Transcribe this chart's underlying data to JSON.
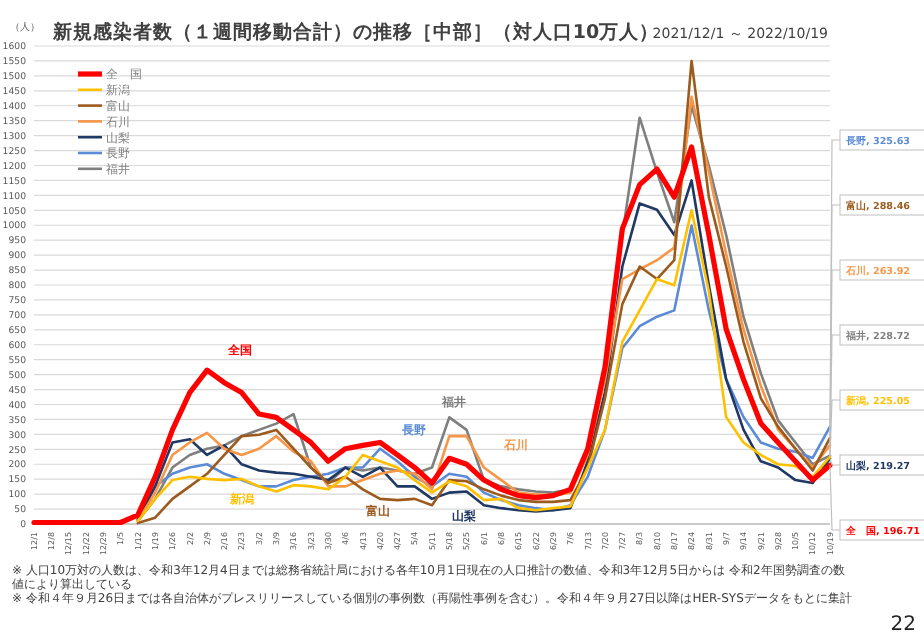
{
  "chart_data": {
    "type": "line",
    "title": "新規感染者数（１週間移動合計）の推移［中部］（対人口10万人）",
    "subtitle": "2021/12/1 ～ 2022/10/19",
    "ylabel": "（人）",
    "x": [
      "2021-12-01",
      "2021-12-08",
      "2021-12-15",
      "2021-12-22",
      "2021-12-29",
      "2022-01-05",
      "2022-01-12",
      "2022-01-19",
      "2022-01-26",
      "2022-02-02",
      "2022-02-09",
      "2022-02-16",
      "2022-02-23",
      "2022-03-02",
      "2022-03-09",
      "2022-03-16",
      "2022-03-23",
      "2022-03-30",
      "2022-04-06",
      "2022-04-13",
      "2022-04-20",
      "2022-04-27",
      "2022-05-04",
      "2022-05-11",
      "2022-05-18",
      "2022-05-25",
      "2022-06-01",
      "2022-06-08",
      "2022-06-15",
      "2022-06-22",
      "2022-06-29",
      "2022-07-06",
      "2022-07-13",
      "2022-07-20",
      "2022-07-27",
      "2022-08-03",
      "2022-08-10",
      "2022-08-17",
      "2022-08-24",
      "2022-08-31",
      "2022-09-07",
      "2022-09-14",
      "2022-09-21",
      "2022-09-28",
      "2022-10-05",
      "2022-10-12",
      "2022-10-19"
    ],
    "series": [
      {
        "name": "全　国",
        "color": "#ff0000",
        "values": [
          5,
          5,
          5,
          5,
          5,
          5,
          30,
          158,
          315,
          440,
          515,
          473,
          440,
          368,
          357,
          315,
          273,
          210,
          252,
          263,
          273,
          231,
          189,
          137,
          220,
          200,
          147,
          116,
          95,
          88,
          95,
          116,
          252,
          526,
          988,
          1136,
          1188,
          1094,
          1262,
          967,
          652,
          484,
          337,
          273,
          210,
          147,
          196.71
        ],
        "value_labels": [
          null,
          null,
          null,
          null,
          null,
          null,
          null,
          null,
          null,
          null,
          null,
          null,
          null,
          null,
          null,
          null,
          null,
          null,
          null,
          null,
          null,
          null,
          null,
          null,
          null,
          null,
          null,
          null,
          null,
          null,
          null,
          null,
          null,
          null,
          null,
          null,
          null,
          null,
          null,
          null,
          null,
          null,
          null,
          null,
          null,
          null,
          "全　国, 196.71"
        ]
      },
      {
        "name": "新潟",
        "color": "#ffc000",
        "values": [
          null,
          null,
          null,
          null,
          null,
          null,
          10,
          84,
          147,
          158,
          151,
          147,
          151,
          126,
          109,
          130,
          126,
          116,
          158,
          231,
          210,
          189,
          147,
          105,
          143,
          126,
          80,
          84,
          53,
          46,
          53,
          59,
          189,
          316,
          610,
          715,
          820,
          799,
          1050,
          778,
          358,
          273,
          231,
          200,
          194,
          158,
          225.05
        ],
        "value_labels": [
          null,
          null,
          null,
          null,
          null,
          null,
          null,
          null,
          null,
          null,
          null,
          null,
          null,
          null,
          null,
          null,
          null,
          null,
          null,
          null,
          null,
          null,
          null,
          null,
          null,
          null,
          null,
          null,
          null,
          null,
          null,
          null,
          null,
          null,
          null,
          null,
          null,
          null,
          null,
          null,
          null,
          null,
          null,
          null,
          null,
          null,
          "新潟, 225.05"
        ]
      },
      {
        "name": "富山",
        "color": "#9c5a1e",
        "values": [
          null,
          null,
          null,
          null,
          null,
          null,
          3,
          21,
          84,
          126,
          168,
          231,
          294,
          299,
          315,
          252,
          189,
          137,
          158,
          116,
          84,
          80,
          84,
          63,
          147,
          143,
          116,
          95,
          80,
          74,
          74,
          80,
          189,
          421,
          736,
          862,
          820,
          883,
          1550,
          1094,
          862,
          610,
          421,
          326,
          252,
          179,
          288.46
        ],
        "value_labels": [
          null,
          null,
          null,
          null,
          null,
          null,
          null,
          null,
          null,
          null,
          null,
          null,
          null,
          null,
          null,
          null,
          null,
          null,
          null,
          null,
          null,
          null,
          null,
          null,
          null,
          null,
          null,
          null,
          null,
          null,
          null,
          null,
          null,
          null,
          null,
          null,
          null,
          null,
          null,
          null,
          null,
          null,
          null,
          null,
          null,
          null,
          "富山, 288.46"
        ]
      },
      {
        "name": "石川",
        "color": "#f79646",
        "values": [
          null,
          null,
          null,
          null,
          null,
          null,
          10,
          105,
          231,
          273,
          305,
          252,
          231,
          252,
          294,
          242,
          210,
          126,
          126,
          147,
          168,
          179,
          168,
          116,
          294,
          294,
          189,
          147,
          105,
          99,
          95,
          105,
          231,
          484,
          820,
          852,
          883,
          925,
          1430,
          1178,
          904,
          652,
          463,
          316,
          252,
          189,
          263.92
        ],
        "value_labels": [
          null,
          null,
          null,
          null,
          null,
          null,
          null,
          null,
          null,
          null,
          null,
          null,
          null,
          null,
          null,
          null,
          null,
          null,
          null,
          null,
          null,
          null,
          null,
          null,
          null,
          null,
          null,
          null,
          null,
          null,
          null,
          null,
          null,
          null,
          null,
          null,
          null,
          null,
          null,
          null,
          null,
          null,
          null,
          null,
          null,
          null,
          "石川, 263.92"
        ]
      },
      {
        "name": "山梨",
        "color": "#1f3864",
        "values": [
          null,
          null,
          null,
          null,
          null,
          null,
          15,
          126,
          273,
          284,
          231,
          263,
          200,
          179,
          172,
          168,
          158,
          147,
          189,
          158,
          189,
          126,
          126,
          84,
          105,
          109,
          63,
          53,
          46,
          42,
          46,
          53,
          210,
          442,
          862,
          1073,
          1052,
          967,
          1150,
          799,
          484,
          316,
          210,
          189,
          147,
          137,
          219.27
        ],
        "value_labels": [
          null,
          null,
          null,
          null,
          null,
          null,
          null,
          null,
          null,
          null,
          null,
          null,
          null,
          null,
          null,
          null,
          null,
          null,
          null,
          null,
          null,
          null,
          null,
          null,
          null,
          null,
          null,
          null,
          null,
          null,
          null,
          null,
          null,
          null,
          null,
          null,
          null,
          null,
          null,
          null,
          null,
          null,
          null,
          null,
          null,
          null,
          "山梨, 219.27"
        ]
      },
      {
        "name": "長野",
        "color": "#5b8bd6",
        "values": [
          null,
          null,
          null,
          null,
          null,
          null,
          15,
          126,
          168,
          189,
          200,
          168,
          147,
          126,
          126,
          147,
          158,
          168,
          189,
          189,
          252,
          210,
          158,
          126,
          168,
          158,
          105,
          80,
          63,
          53,
          46,
          63,
          158,
          316,
          589,
          662,
          694,
          715,
          999,
          715,
          484,
          358,
          273,
          252,
          242,
          221,
          325.63
        ],
        "value_labels": [
          null,
          null,
          null,
          null,
          null,
          null,
          null,
          null,
          null,
          null,
          null,
          null,
          null,
          null,
          null,
          null,
          null,
          null,
          null,
          null,
          null,
          null,
          null,
          null,
          null,
          null,
          null,
          null,
          null,
          null,
          null,
          null,
          null,
          null,
          null,
          null,
          null,
          null,
          null,
          null,
          null,
          null,
          null,
          null,
          null,
          null,
          "長野, 325.63"
        ]
      },
      {
        "name": "福井",
        "color": "#7f7f7f",
        "values": [
          null,
          null,
          null,
          null,
          null,
          null,
          10,
          84,
          189,
          231,
          252,
          263,
          294,
          315,
          336,
          368,
          189,
          137,
          189,
          179,
          189,
          179,
          168,
          189,
          357,
          315,
          147,
          126,
          116,
          109,
          105,
          116,
          231,
          505,
          967,
          1360,
          1178,
          1010,
          1400,
          1199,
          967,
          694,
          505,
          347,
          273,
          200,
          228.72
        ],
        "value_labels": [
          null,
          null,
          null,
          null,
          null,
          null,
          null,
          null,
          null,
          null,
          null,
          null,
          null,
          null,
          null,
          null,
          null,
          null,
          null,
          null,
          null,
          null,
          null,
          null,
          null,
          null,
          null,
          null,
          null,
          null,
          null,
          null,
          null,
          null,
          null,
          null,
          null,
          null,
          null,
          null,
          null,
          null,
          null,
          null,
          null,
          null,
          "福井, 228.72"
        ]
      }
    ],
    "xlim": [
      "2021-12-01",
      "2022-10-19"
    ],
    "xticks": [
      {
        "value": "2021-12-01",
        "label": "12/1"
      },
      {
        "value": "2021-12-08",
        "label": "12/8"
      },
      {
        "value": "2021-12-15",
        "label": "12/15"
      },
      {
        "value": "2021-12-22",
        "label": "12/22"
      },
      {
        "value": "2021-12-29",
        "label": "12/29"
      },
      {
        "value": "2022-01-05",
        "label": "1/5"
      },
      {
        "value": "2022-01-12",
        "label": "1/12"
      },
      {
        "value": "2022-01-19",
        "label": "1/19"
      },
      {
        "value": "2022-01-26",
        "label": "1/26"
      },
      {
        "value": "2022-02-02",
        "label": "2/2"
      },
      {
        "value": "2022-02-09",
        "label": "2/9"
      },
      {
        "value": "2022-02-16",
        "label": "2/16"
      },
      {
        "value": "2022-02-23",
        "label": "2/23"
      },
      {
        "value": "2022-03-02",
        "label": "3/2"
      },
      {
        "value": "2022-03-09",
        "label": "3/9"
      },
      {
        "value": "2022-03-16",
        "label": "3/16"
      },
      {
        "value": "2022-03-23",
        "label": "3/23"
      },
      {
        "value": "2022-03-30",
        "label": "3/30"
      },
      {
        "value": "2022-04-06",
        "label": "4/6"
      },
      {
        "value": "2022-04-13",
        "label": "4/13"
      },
      {
        "value": "2022-04-20",
        "label": "4/20"
      },
      {
        "value": "2022-04-27",
        "label": "4/27"
      },
      {
        "value": "2022-05-04",
        "label": "5/4"
      },
      {
        "value": "2022-05-11",
        "label": "5/11"
      },
      {
        "value": "2022-05-18",
        "label": "5/18"
      },
      {
        "value": "2022-05-25",
        "label": "5/25"
      },
      {
        "value": "2022-06-01",
        "label": "6/1"
      },
      {
        "value": "2022-06-08",
        "label": "6/8"
      },
      {
        "value": "2022-06-15",
        "label": "6/15"
      },
      {
        "value": "2022-06-22",
        "label": "6/22"
      },
      {
        "value": "2022-06-29",
        "label": "6/29"
      },
      {
        "value": "2022-07-06",
        "label": "7/6"
      },
      {
        "value": "2022-07-13",
        "label": "7/13"
      },
      {
        "value": "2022-07-20",
        "label": "7/20"
      },
      {
        "value": "2022-07-27",
        "label": "7/27"
      },
      {
        "value": "2022-08-03",
        "label": "8/3"
      },
      {
        "value": "2022-08-10",
        "label": "8/10"
      },
      {
        "value": "2022-08-17",
        "label": "8/17"
      },
      {
        "value": "2022-08-24",
        "label": "8/24"
      },
      {
        "value": "2022-08-31",
        "label": "8/31"
      },
      {
        "value": "2022-09-07",
        "label": "9/7"
      },
      {
        "value": "2022-09-14",
        "label": "9/14"
      },
      {
        "value": "2022-09-21",
        "label": "9/21"
      },
      {
        "value": "2022-09-28",
        "label": "9/28"
      },
      {
        "value": "2022-10-05",
        "label": "10/5"
      },
      {
        "value": "2022-10-12",
        "label": "10/12"
      },
      {
        "value": "2022-10-19",
        "label": "10/19"
      }
    ],
    "ylim": [
      0,
      1600
    ],
    "yticks": [
      0,
      50,
      100,
      150,
      200,
      250,
      300,
      350,
      400,
      450,
      500,
      550,
      600,
      650,
      700,
      750,
      800,
      850,
      900,
      950,
      1000,
      1050,
      1100,
      1150,
      1200,
      1250,
      1300,
      1350,
      1400,
      1450,
      1500,
      1550,
      1600
    ],
    "grid": "y",
    "legend": "top left",
    "marker": "none",
    "line_style": "solid",
    "annotations": [
      "全国",
      "新潟",
      "富山",
      "長野",
      "福井",
      "山梨",
      "石川",
      "※ 人口10万対の人数は、令和3年12月4日までは総務省統計局における各年10月1日現在の人口推計の数値、令和3年12月5日からは 令和2年国勢調査の数値により算出している",
      "※ 令和４年９月26日までは各自治体がプレスリリースしている個別の事例数（再陽性事例を含む）。令和４年９月27日以降はHER-SYSデータをもとに集計",
      "22"
    ]
  }
}
